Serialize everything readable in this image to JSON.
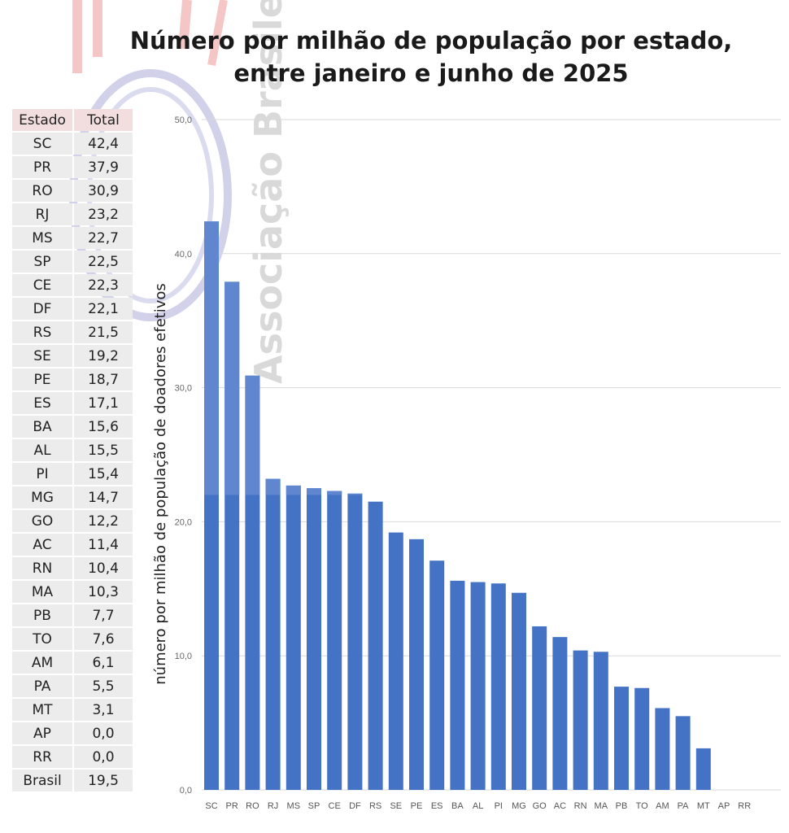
{
  "chart_data": {
    "type": "bar",
    "title": "Número por milhão de população por estado, entre janeiro e junho de 2025",
    "xlabel": "",
    "ylabel": "número por milhão de população de doadores efetivos",
    "ylim": [
      0,
      50
    ],
    "yticks": [
      "0,0",
      "10,0",
      "20,0",
      "30,0",
      "40,0",
      "50,0"
    ],
    "categories": [
      "SC",
      "PR",
      "RO",
      "RJ",
      "MS",
      "SP",
      "CE",
      "DF",
      "RS",
      "SE",
      "PE",
      "ES",
      "BA",
      "AL",
      "PI",
      "MG",
      "GO",
      "AC",
      "RN",
      "MA",
      "PB",
      "TO",
      "AM",
      "PA",
      "MT",
      "AP",
      "RR"
    ],
    "values": [
      42.4,
      37.9,
      30.9,
      23.2,
      22.7,
      22.5,
      22.3,
      22.1,
      21.5,
      19.2,
      18.7,
      17.1,
      15.6,
      15.5,
      15.4,
      14.7,
      12.2,
      11.4,
      10.4,
      10.3,
      7.7,
      7.6,
      6.1,
      5.5,
      3.1,
      0.0,
      0.0
    ],
    "reference_value": 22,
    "bar_color": "#4472C4",
    "bar_color_upper": "#5f86cf"
  },
  "table": {
    "headers": [
      "Estado",
      "Total"
    ],
    "rows": [
      [
        "SC",
        "42,4"
      ],
      [
        "PR",
        "37,9"
      ],
      [
        "RO",
        "30,9"
      ],
      [
        "RJ",
        "23,2"
      ],
      [
        "MS",
        "22,7"
      ],
      [
        "SP",
        "22,5"
      ],
      [
        "CE",
        "22,3"
      ],
      [
        "DF",
        "22,1"
      ],
      [
        "RS",
        "21,5"
      ],
      [
        "SE",
        "19,2"
      ],
      [
        "PE",
        "18,7"
      ],
      [
        "ES",
        "17,1"
      ],
      [
        "BA",
        "15,6"
      ],
      [
        "AL",
        "15,5"
      ],
      [
        "PI",
        "15,4"
      ],
      [
        "MG",
        "14,7"
      ],
      [
        "GO",
        "12,2"
      ],
      [
        "AC",
        "11,4"
      ],
      [
        "RN",
        "10,4"
      ],
      [
        "MA",
        "10,3"
      ],
      [
        "PB",
        "7,7"
      ],
      [
        "TO",
        "7,6"
      ],
      [
        "AM",
        "6,1"
      ],
      [
        "PA",
        "5,5"
      ],
      [
        "MT",
        "3,1"
      ],
      [
        "AP",
        "0,0"
      ],
      [
        "RR",
        "0,0"
      ],
      [
        "Brasil",
        "19,5"
      ]
    ]
  },
  "watermark": {
    "text": "Associação Brasilei"
  }
}
